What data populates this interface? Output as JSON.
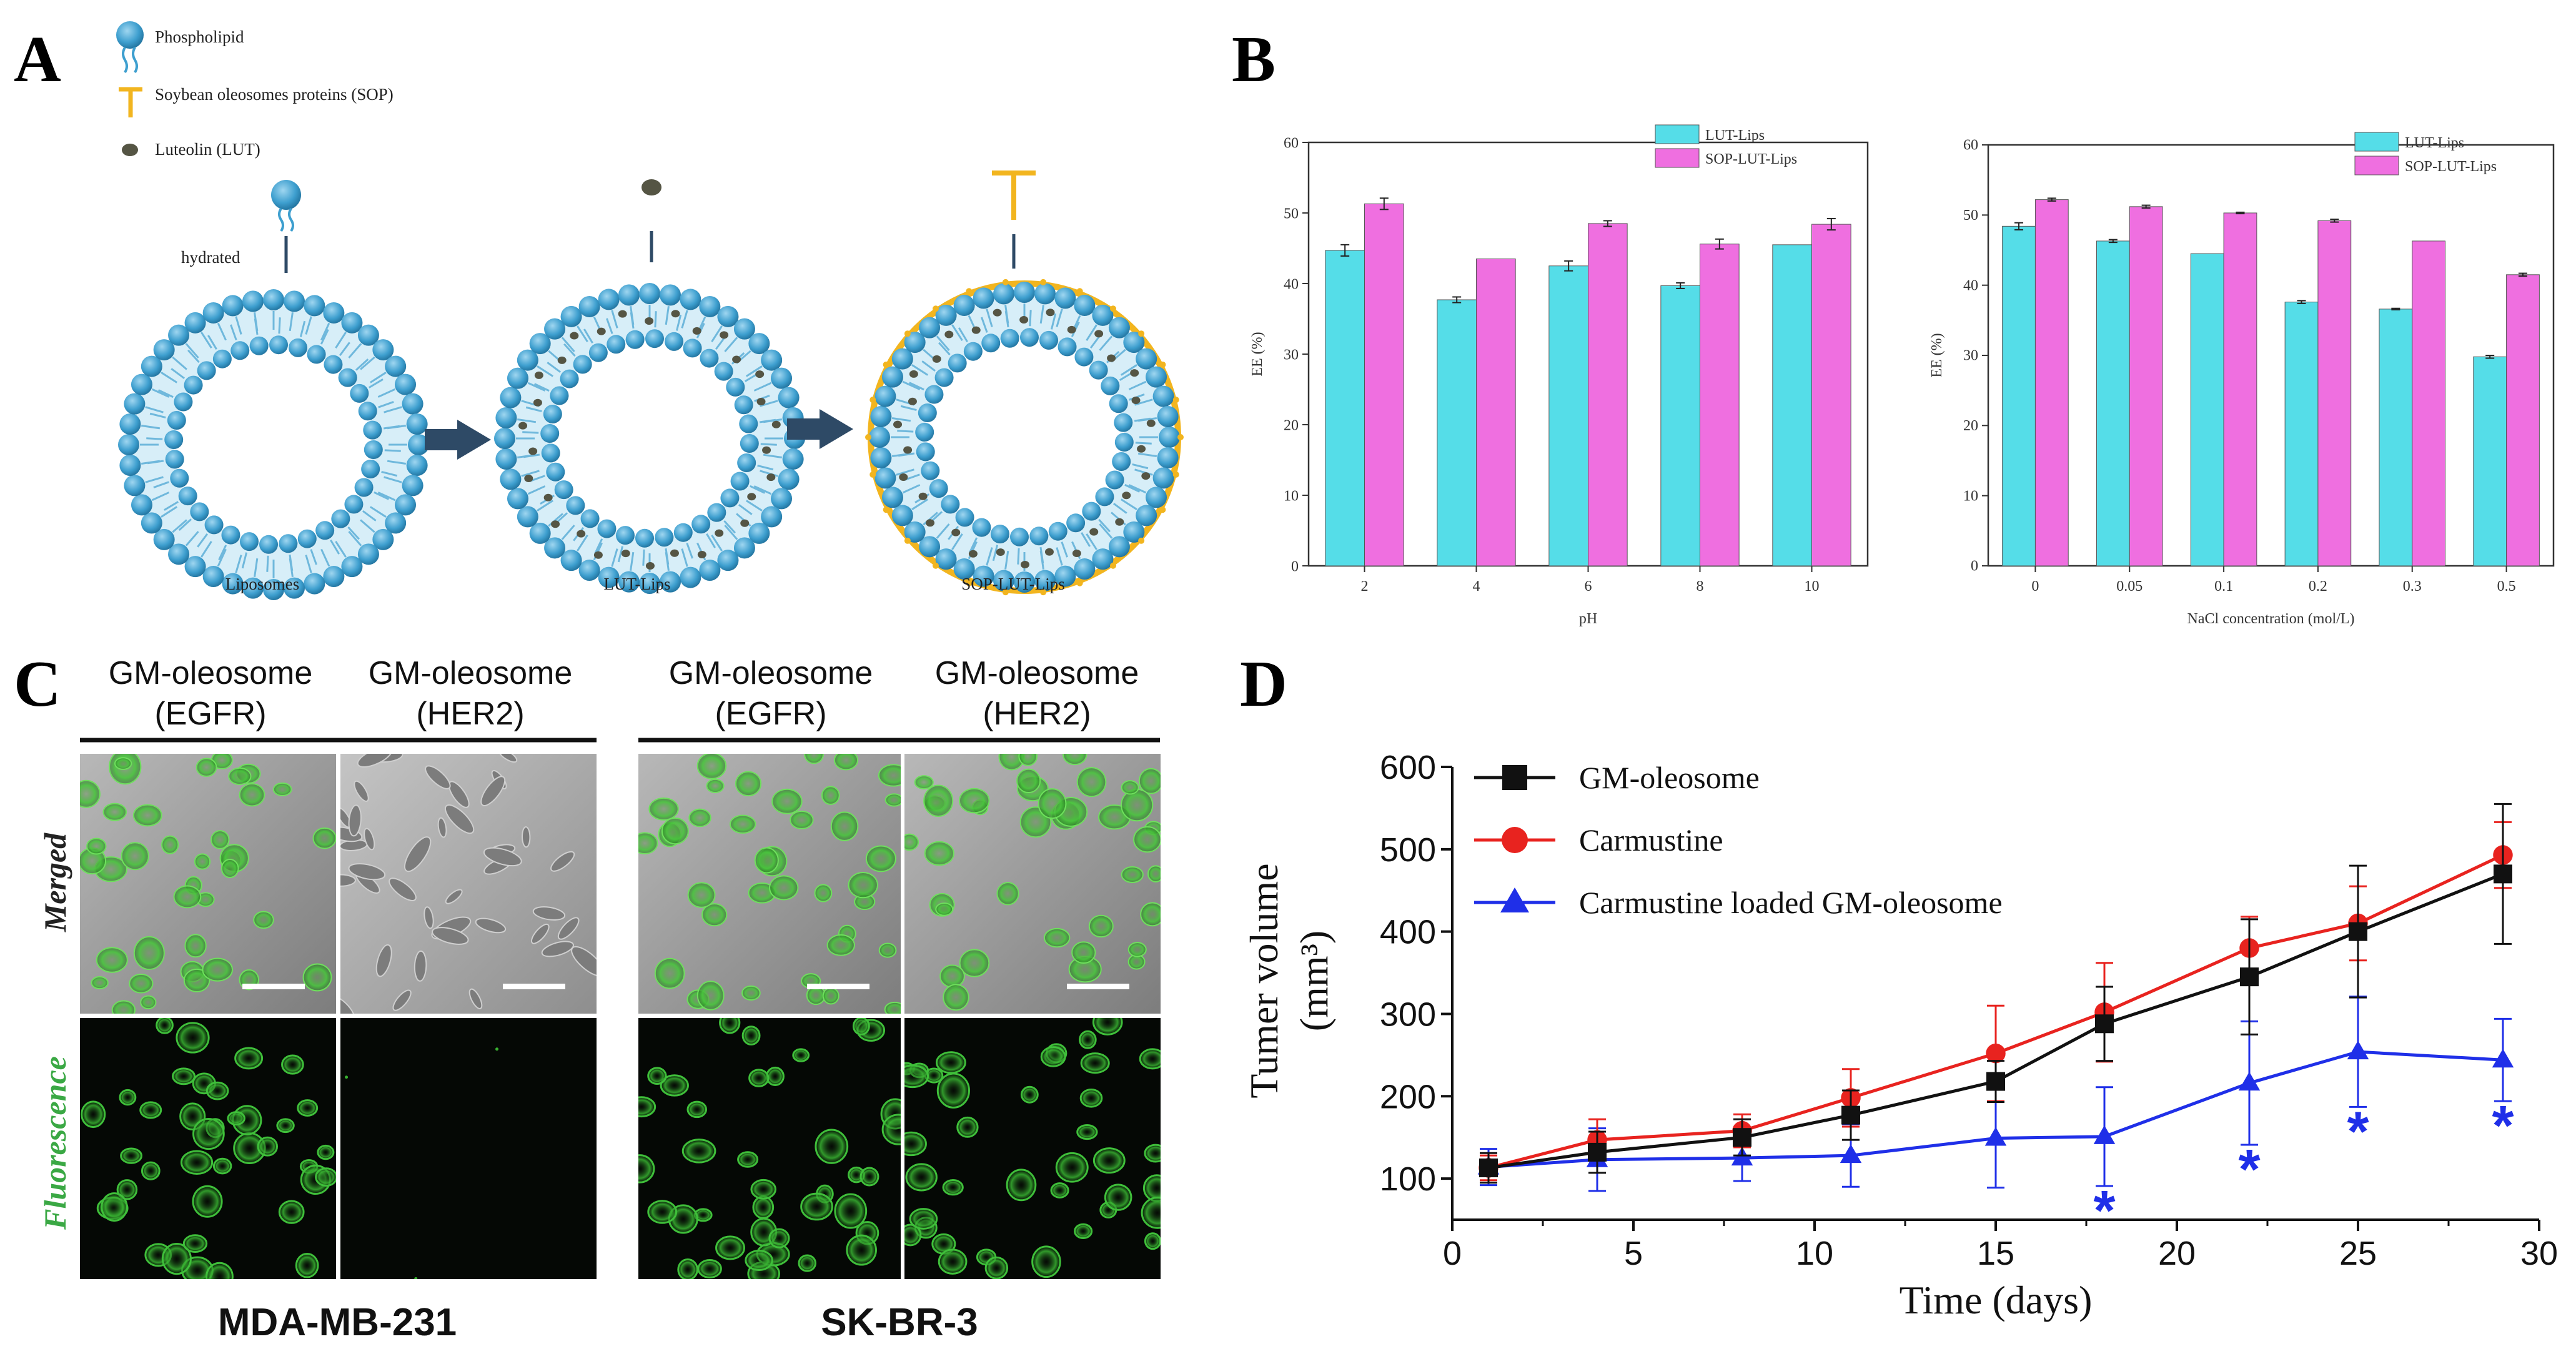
{
  "panel_labels": {
    "a": "A",
    "b": "B",
    "c": "C",
    "d": "D"
  },
  "schematic": {
    "legend": [
      {
        "label": "Phospholipid",
        "icon": "phospholipid-icon"
      },
      {
        "label": "Soybean oleosomes proteins (SOP)",
        "icon": "sop-icon"
      },
      {
        "label": "Luteolin (LUT)",
        "icon": "luteolin-icon"
      }
    ],
    "hydrated_label": "hydrated",
    "structures": [
      "Liposomes",
      "LUT-Lips",
      "SOP-LUT-Lips"
    ],
    "colors": {
      "lipid": "#3e9fcf",
      "lipid_dark": "#1f6f9a",
      "sop": "#f2b51f",
      "lut": "#555544",
      "arrow": "#2e4a66"
    }
  },
  "imaging": {
    "columns": [
      {
        "line1": "GM-oleosome",
        "line2": "(EGFR)"
      },
      {
        "line1": "GM-oleosome",
        "line2": "(HER2)"
      },
      {
        "line1": "GM-oleosome",
        "line2": "(EGFR)"
      },
      {
        "line1": "GM-oleosome",
        "line2": "(HER2)"
      }
    ],
    "rows": [
      "Merged",
      "Fluorescence"
    ],
    "cell_lines": [
      "MDA-MB-231",
      "SK-BR-3"
    ]
  },
  "chart_data": [
    {
      "type": "bar",
      "title": "",
      "categories": [
        "2",
        "4",
        "6",
        "8",
        "10"
      ],
      "xlabel": "pH",
      "ylabel": "EE (%)",
      "ylim": [
        0,
        60
      ],
      "yticks": [
        "0",
        "10",
        "20",
        "30",
        "40",
        "50",
        "60"
      ],
      "series": [
        {
          "name": "LUT-Lips",
          "color": "#55dde8",
          "values": [
            44.7,
            37.7,
            42.5,
            39.7,
            45.5
          ],
          "errors": [
            0.8,
            0.4,
            0.7,
            0.4,
            0.0
          ]
        },
        {
          "name": "SOP-LUT-Lips",
          "color": "#ef6fe0",
          "values": [
            51.3,
            43.5,
            48.5,
            45.6,
            48.4
          ],
          "errors": [
            0.8,
            0.0,
            0.4,
            0.7,
            0.8
          ]
        }
      ],
      "legend_position": "top-right"
    },
    {
      "type": "bar",
      "title": "",
      "categories": [
        "0",
        "0.05",
        "0.1",
        "0.2",
        "0.3",
        "0.5"
      ],
      "xlabel": "NaCl concentration (mol/L)",
      "ylabel": "EE (%)",
      "ylim": [
        0,
        60
      ],
      "yticks": [
        "0",
        "10",
        "20",
        "30",
        "40",
        "50",
        "60"
      ],
      "series": [
        {
          "name": "LUT-Lips",
          "color": "#55dde8",
          "values": [
            48.4,
            46.3,
            44.5,
            37.6,
            36.6,
            29.8
          ],
          "errors": [
            0.5,
            0.2,
            0.0,
            0.2,
            0.1,
            0.2
          ]
        },
        {
          "name": "SOP-LUT-Lips",
          "color": "#ef6fe0",
          "values": [
            52.2,
            51.2,
            50.3,
            49.2,
            46.3,
            41.5
          ],
          "errors": [
            0.2,
            0.2,
            0.1,
            0.2,
            0.0,
            0.2
          ]
        }
      ],
      "legend_position": "top-right"
    },
    {
      "type": "line",
      "title": "",
      "xlabel": "Time (days)",
      "ylabel": "Tumer volume",
      "ylabel_unit": "(mm³)",
      "xlim": [
        0,
        30
      ],
      "ylim": [
        50,
        600
      ],
      "xticks": [
        "0",
        "5",
        "10",
        "15",
        "20",
        "25",
        "30"
      ],
      "yticks": [
        "100",
        "200",
        "300",
        "400",
        "500",
        "600"
      ],
      "series": [
        {
          "name": "GM-oleosome",
          "color": "#111111",
          "marker": "square",
          "x": [
            1,
            4,
            8,
            11,
            15,
            18,
            22,
            25,
            29
          ],
          "values": [
            113,
            132,
            150,
            177,
            218,
            288,
            345,
            400,
            470
          ],
          "errors": [
            18,
            25,
            22,
            30,
            25,
            45,
            70,
            80,
            85
          ]
        },
        {
          "name": "Carmustine",
          "color": "#e8231f",
          "marker": "circle",
          "x": [
            1,
            4,
            8,
            11,
            15,
            18,
            22,
            25,
            29
          ],
          "values": [
            113,
            147,
            158,
            198,
            252,
            302,
            380,
            410,
            493
          ],
          "errors": [
            15,
            25,
            20,
            35,
            58,
            60,
            38,
            45,
            40
          ]
        },
        {
          "name": "Carmustine loaded GM-oleosome",
          "color": "#1f2fe8",
          "marker": "triangle",
          "x": [
            1,
            4,
            8,
            11,
            15,
            18,
            22,
            25,
            29
          ],
          "values": [
            114,
            123,
            125,
            128,
            149,
            151,
            216,
            254,
            244
          ],
          "errors": [
            22,
            38,
            28,
            38,
            60,
            60,
            75,
            67,
            50
          ]
        }
      ],
      "significance": [
        {
          "x": 18,
          "label": "*"
        },
        {
          "x": 22,
          "label": "*"
        },
        {
          "x": 25,
          "label": "*"
        },
        {
          "x": 29,
          "label": "*"
        }
      ],
      "legend_position": "top-left"
    }
  ]
}
